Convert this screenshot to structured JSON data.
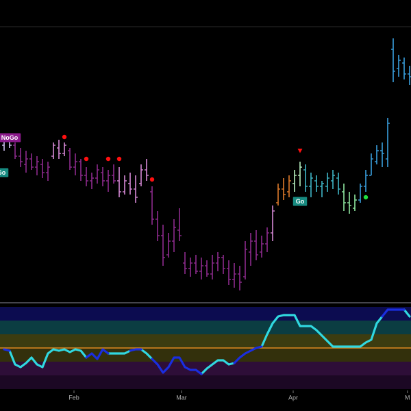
{
  "chart_data": [
    {
      "type": "ohlc",
      "x": [
        0,
        1,
        2,
        3,
        4,
        5,
        6,
        7,
        8,
        9,
        10,
        11,
        12,
        13,
        14,
        15,
        16,
        17,
        18,
        19,
        20,
        21,
        22,
        23,
        24,
        25,
        26,
        27,
        28,
        29,
        30,
        31,
        32,
        33,
        34,
        35,
        36,
        37,
        38,
        39,
        40,
        41,
        42,
        43,
        44,
        45,
        46,
        47,
        48,
        49,
        50,
        51,
        52,
        53,
        54,
        55,
        56,
        57,
        58,
        59,
        60,
        61,
        62,
        63,
        64,
        65,
        66,
        67,
        68,
        69,
        70,
        71,
        72,
        73,
        74
      ],
      "open": [
        57,
        59,
        57,
        53,
        50,
        52,
        49,
        50,
        47,
        53,
        56,
        54,
        55,
        49,
        51,
        46,
        44,
        45,
        47,
        44,
        46,
        44,
        40,
        43,
        41,
        43,
        48,
        40,
        30,
        24,
        17,
        22,
        26,
        14,
        12,
        14,
        11,
        13,
        10,
        14,
        16,
        12,
        8,
        10,
        9,
        18,
        22,
        18,
        21,
        25,
        36,
        41,
        40,
        43,
        46,
        48,
        42,
        44,
        42,
        42,
        44,
        45,
        40,
        36,
        34,
        37,
        42,
        46,
        51,
        55,
        52,
        92,
        85,
        87,
        83
      ],
      "high": [
        60,
        61,
        58,
        56,
        55,
        54,
        53,
        52,
        51,
        58,
        59,
        58,
        56,
        54,
        52,
        49,
        47,
        50,
        49,
        48,
        50,
        49,
        46,
        47,
        46,
        50,
        52,
        42,
        33,
        28,
        25,
        30,
        34,
        18,
        16,
        17,
        16,
        15,
        17,
        18,
        17,
        15,
        14,
        13,
        22,
        25,
        26,
        24,
        27,
        35,
        43,
        45,
        46,
        48,
        51,
        50,
        47,
        46,
        44,
        47,
        48,
        47,
        43,
        40,
        39,
        43,
        48,
        54,
        57,
        58,
        67,
        96,
        90,
        89,
        86
      ],
      "low": [
        55,
        56,
        52,
        49,
        47,
        48,
        46,
        45,
        44,
        52,
        52,
        53,
        48,
        46,
        44,
        42,
        41,
        43,
        42,
        40,
        43,
        38,
        39,
        39,
        36,
        42,
        44,
        28,
        22,
        13,
        16,
        18,
        22,
        10,
        9,
        10,
        8,
        9,
        8,
        11,
        10,
        6,
        5,
        4,
        8,
        13,
        15,
        16,
        18,
        22,
        35,
        37,
        38,
        40,
        42,
        40,
        38,
        40,
        38,
        40,
        41,
        39,
        33,
        32,
        33,
        36,
        40,
        46,
        50,
        49,
        49,
        80,
        82,
        81,
        79
      ],
      "close": [
        59,
        57,
        53,
        51,
        52,
        49,
        51,
        47,
        49,
        57,
        54,
        57,
        49,
        51,
        46,
        44,
        45,
        48,
        44,
        46,
        44,
        40,
        44,
        41,
        38,
        48,
        46,
        30,
        24,
        16,
        22,
        27,
        24,
        12,
        14,
        11,
        13,
        10,
        14,
        16,
        12,
        8,
        10,
        7,
        19,
        22,
        17,
        21,
        25,
        33,
        41,
        39,
        44,
        46,
        49,
        42,
        45,
        42,
        43,
        45,
        46,
        41,
        36,
        35,
        37,
        42,
        46,
        52,
        55,
        54,
        65,
        84,
        88,
        83,
        82
      ],
      "colors": [
        "#d0c0f0",
        "#d0c0f0",
        "#8e2b8e",
        "#8e2b8e",
        "#8e2b8e",
        "#8e2b8e",
        "#8e2b8e",
        "#8e2b8e",
        "#8e2b8e",
        "#d88ad8",
        "#d88ad8",
        "#d88ad8",
        "#8e2b8e",
        "#8e2b8e",
        "#8e2b8e",
        "#8e2b8e",
        "#8e2b8e",
        "#8e2b8e",
        "#8e2b8e",
        "#8e2b8e",
        "#8e2b8e",
        "#d88ad8",
        "#d88ad8",
        "#d88ad8",
        "#d88ad8",
        "#d88ad8",
        "#d88ad8",
        "#8e2b8e",
        "#8e2b8e",
        "#8e2b8e",
        "#8e2b8e",
        "#8e2b8e",
        "#8e2b8e",
        "#8e2b8e",
        "#8e2b8e",
        "#8e2b8e",
        "#8e2b8e",
        "#8e2b8e",
        "#8e2b8e",
        "#8e2b8e",
        "#8e2b8e",
        "#8e2b8e",
        "#8e2b8e",
        "#8e2b8e",
        "#8e2b8e",
        "#8e2b8e",
        "#8e2b8e",
        "#8e2b8e",
        "#8e2b8e",
        "#d88ad8",
        "#e07b2a",
        "#e07b2a",
        "#e07b2a",
        "#b8f0c0",
        "#b8f0c0",
        "#40b8c8",
        "#40b8c8",
        "#40b8c8",
        "#40b8c8",
        "#40b8c8",
        "#40b8c8",
        "#40b8c8",
        "#90e8a0",
        "#90e8a0",
        "#90e8a0",
        "#3aa0e0",
        "#3aa0e0",
        "#3aa0e0",
        "#3aa0e0",
        "#3aa0e0",
        "#3aa0e0",
        "#3aa0e0",
        "#3aa0e0",
        "#3aa0e0",
        "#3aa0e0"
      ],
      "xlim": [
        -0.75,
        74.25
      ],
      "ylim": [
        0,
        100
      ],
      "markers": [
        {
          "x": 11,
          "y": 60,
          "shape": "dot",
          "color": "#ff1010"
        },
        {
          "x": 15,
          "y": 52,
          "shape": "dot",
          "color": "#ff1010"
        },
        {
          "x": 19,
          "y": 52,
          "shape": "dot",
          "color": "#ff1010"
        },
        {
          "x": 21,
          "y": 52,
          "shape": "dot",
          "color": "#ff1010"
        },
        {
          "x": 27,
          "y": 44.5,
          "shape": "dot",
          "color": "#ff1010"
        },
        {
          "x": 54,
          "y": 55,
          "shape": "triangle",
          "color": "#ff1010"
        },
        {
          "x": 66,
          "y": 38,
          "shape": "dot",
          "color": "#20e040"
        }
      ],
      "annotations": [
        {
          "text": "NoGo",
          "x": 1,
          "y": 59.75,
          "color": "#8b1a8b"
        },
        {
          "text": "Go",
          "x": -0.5,
          "y": 47,
          "color": "#178a80"
        },
        {
          "text": "Go",
          "x": 54,
          "y": 36.5,
          "color": "#178a80"
        }
      ]
    },
    {
      "type": "line",
      "x": [
        0,
        1,
        2,
        3,
        4,
        5,
        6,
        7,
        8,
        9,
        10,
        11,
        12,
        13,
        14,
        15,
        16,
        17,
        18,
        19,
        20,
        21,
        22,
        23,
        24,
        25,
        26,
        27,
        28,
        29,
        30,
        31,
        32,
        33,
        34,
        35,
        36,
        37,
        38,
        39,
        40,
        41,
        42,
        43,
        44,
        45,
        46,
        47,
        48,
        49,
        50,
        51,
        52,
        53,
        54,
        55,
        56,
        57,
        58,
        59,
        60,
        61,
        62,
        63,
        64,
        65,
        66,
        67,
        68,
        69,
        70,
        71,
        72,
        73,
        74
      ],
      "series": [
        {
          "color": "#30d8e0",
          "values": [
            null,
            -0.2,
            -1.2,
            -1.4,
            -1.1,
            -0.7,
            -1.2,
            -1.4,
            -0.4,
            -0.1,
            -0.2,
            -0.1,
            -0.3,
            -0.1,
            -0.2,
            -0.7,
            null,
            null,
            null,
            -0.4,
            -0.4,
            -0.4,
            -0.4,
            -0.2,
            null,
            -0.1,
            -0.4,
            -0.8,
            null,
            null,
            null,
            null,
            null,
            null,
            null,
            null,
            -1.9,
            -1.5,
            -1.2,
            -0.9,
            -0.9,
            -1.2,
            -1.1,
            null,
            null,
            null,
            null,
            0.1,
            1,
            1.8,
            2.3,
            2.4,
            2.4,
            2.4,
            1.6,
            1.6,
            1.6,
            1.3,
            0.9,
            0.5,
            0.1,
            0.1,
            0.1,
            0.1,
            0.1,
            0.1,
            0.4,
            0.6,
            1.8,
            2.3,
            null,
            null,
            null,
            2.8,
            2.3
          ]
        },
        {
          "color": "#1a2ee0",
          "values": [
            -0.1,
            -0.2,
            null,
            null,
            null,
            null,
            null,
            null,
            null,
            null,
            null,
            null,
            null,
            null,
            null,
            -0.7,
            -0.4,
            -0.8,
            -0.1,
            -0.4,
            null,
            null,
            null,
            -0.2,
            -0.1,
            -0.1,
            null,
            -0.8,
            -1.2,
            -1.8,
            -1.4,
            -0.7,
            -0.7,
            -1.4,
            -1.6,
            -1.6,
            -1.9,
            null,
            null,
            null,
            null,
            null,
            -1.1,
            -0.7,
            -0.4,
            -0.2,
            0,
            0.1,
            null,
            null,
            null,
            null,
            null,
            null,
            null,
            null,
            null,
            null,
            null,
            null,
            null,
            null,
            null,
            null,
            null,
            null,
            null,
            null,
            null,
            2.3,
            2.8,
            2.8,
            2.8,
            2.8,
            null
          ]
        }
      ],
      "xlim": [
        -0.75,
        74.25
      ],
      "ylim": [
        -3,
        3
      ],
      "xticks": [
        {
          "value": 12.75,
          "label": "Feb"
        },
        {
          "value": 32.375,
          "label": "Mar"
        },
        {
          "value": 52.75,
          "label": "Apr"
        },
        {
          "value": 73.6,
          "label": "M"
        }
      ]
    }
  ]
}
